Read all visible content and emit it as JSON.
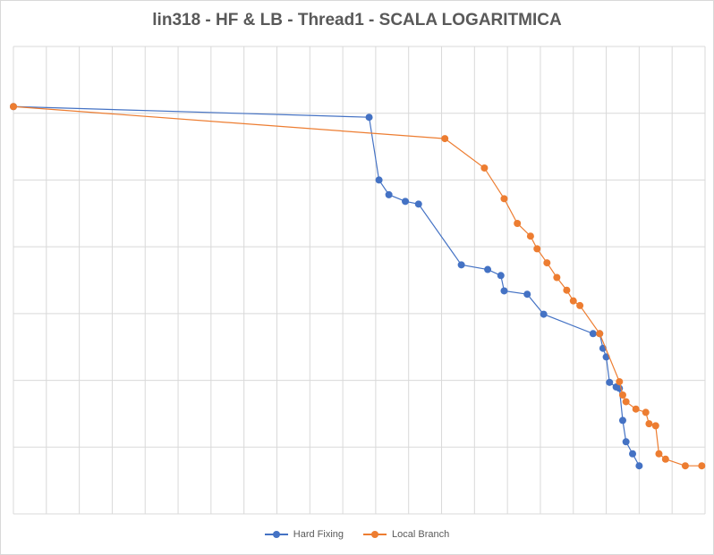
{
  "chart_data": {
    "type": "line",
    "title": "lin318 - HF & LB - Thread1 - SCALA LOGARITMICA",
    "xlabel": "",
    "ylabel": "",
    "x_tick_labels": [],
    "y_tick_labels": [],
    "grid": true,
    "legend_position": "bottom",
    "series": [
      {
        "name": "Hard Fixing",
        "color": "#4472c4",
        "points": [
          [
            0.0,
            6.1
          ],
          [
            10.8,
            5.94
          ],
          [
            11.1,
            5.0
          ],
          [
            11.4,
            4.78
          ],
          [
            11.9,
            4.68
          ],
          [
            12.3,
            4.64
          ],
          [
            13.6,
            3.73
          ],
          [
            14.4,
            3.66
          ],
          [
            14.8,
            3.57
          ],
          [
            14.9,
            3.34
          ],
          [
            15.6,
            3.29
          ],
          [
            16.1,
            2.99
          ],
          [
            17.6,
            2.7
          ],
          [
            17.8,
            2.7
          ],
          [
            17.9,
            2.48
          ],
          [
            18.0,
            2.35
          ],
          [
            18.1,
            1.97
          ],
          [
            18.3,
            1.9
          ],
          [
            18.4,
            1.88
          ],
          [
            18.5,
            1.4
          ],
          [
            18.6,
            1.08
          ],
          [
            18.8,
            0.9
          ],
          [
            19.0,
            0.72
          ]
        ]
      },
      {
        "name": "Local Branch",
        "color": "#ed7d31",
        "points": [
          [
            0.0,
            6.1
          ],
          [
            13.1,
            5.62
          ],
          [
            14.3,
            5.18
          ],
          [
            14.9,
            4.72
          ],
          [
            15.3,
            4.35
          ],
          [
            15.7,
            4.16
          ],
          [
            15.9,
            3.97
          ],
          [
            16.2,
            3.76
          ],
          [
            16.5,
            3.54
          ],
          [
            16.8,
            3.35
          ],
          [
            17.0,
            3.19
          ],
          [
            17.2,
            3.12
          ],
          [
            17.8,
            2.7
          ],
          [
            18.4,
            1.98
          ],
          [
            18.5,
            1.78
          ],
          [
            18.6,
            1.68
          ],
          [
            18.9,
            1.57
          ],
          [
            19.2,
            1.52
          ],
          [
            19.3,
            1.35
          ],
          [
            19.5,
            1.32
          ],
          [
            19.6,
            0.9
          ],
          [
            19.8,
            0.82
          ],
          [
            20.4,
            0.72
          ],
          [
            20.9,
            0.72
          ]
        ]
      }
    ]
  }
}
